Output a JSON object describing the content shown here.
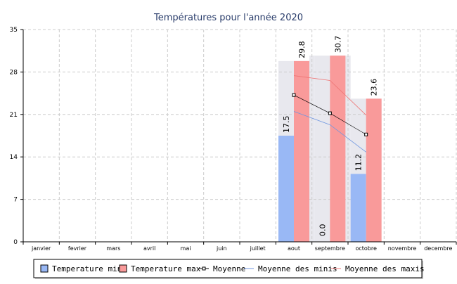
{
  "chart_data": {
    "type": "bar",
    "title": "Températures pour l'année 2020",
    "xlabel": "",
    "ylabel": "",
    "ylim": [
      0,
      35
    ],
    "yticks": [
      0,
      7,
      14,
      21,
      28,
      35
    ],
    "grid": true,
    "legend_position": "bottom",
    "categories": [
      "janvier",
      "fevrier",
      "mars",
      "avril",
      "mai",
      "juin",
      "juillet",
      "aout",
      "septembre",
      "octobre",
      "novembre",
      "decembre"
    ],
    "series": [
      {
        "name": "Temperature min",
        "kind": "bar",
        "color": "#99b8f5",
        "values": [
          null,
          null,
          null,
          null,
          null,
          null,
          null,
          17.5,
          0.0,
          11.2,
          null,
          null
        ],
        "labels": [
          "",
          "",
          "",
          "",
          "",
          "",
          "",
          "17.5",
          "0.0",
          "11.2",
          "",
          ""
        ]
      },
      {
        "name": "Temperature max",
        "kind": "bar",
        "color": "#f99a9a",
        "values": [
          null,
          null,
          null,
          null,
          null,
          null,
          null,
          29.8,
          30.7,
          23.6,
          null,
          null
        ],
        "labels": [
          "",
          "",
          "",
          "",
          "",
          "",
          "",
          "29.8",
          "30.7",
          "23.6",
          "",
          ""
        ]
      },
      {
        "name": "Moyenne",
        "kind": "line-markers",
        "color": "#000000",
        "values": [
          null,
          null,
          null,
          null,
          null,
          null,
          null,
          24.2,
          21.2,
          17.7,
          null,
          null
        ]
      },
      {
        "name": "Moyenne des minis",
        "kind": "line",
        "color": "#6f96e0",
        "values": [
          null,
          null,
          null,
          null,
          null,
          null,
          null,
          21.5,
          19.3,
          14.8,
          null,
          null
        ]
      },
      {
        "name": "Moyenne des maxis",
        "kind": "line",
        "color": "#ee7474",
        "values": [
          null,
          null,
          null,
          null,
          null,
          null,
          null,
          27.4,
          26.6,
          20.9,
          null,
          null
        ]
      }
    ],
    "band_fill": "#e8e8ee"
  }
}
